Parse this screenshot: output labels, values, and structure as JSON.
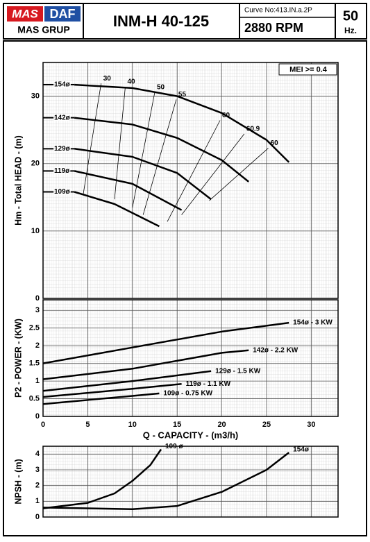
{
  "header": {
    "logo_left": "MAS",
    "logo_right": "DAF",
    "brand": "MAS GRUP",
    "title": "INM-H 40-125",
    "curve_no": "Curve No:413.IN.a.2P",
    "speed": "2880 RPM",
    "frequency": "50",
    "frequency_unit": "Hz."
  },
  "chart_data": [
    {
      "type": "line",
      "ylabel": "Hm - Total HEAD - (m)",
      "annotation": "MEI >= 0.4",
      "xlim": [
        0,
        33
      ],
      "ylim": [
        0,
        35
      ],
      "xticks": [
        0,
        5,
        10,
        15,
        20,
        25,
        30
      ],
      "xtick_labels_shown": false,
      "yticks": [
        0,
        10,
        20,
        30
      ],
      "grid": true,
      "series": [
        {
          "name": "154ø",
          "color": "#000000",
          "x": [
            3.5,
            10,
            15,
            20,
            25,
            27.5
          ],
          "values": [
            31.7,
            31.2,
            30,
            27.5,
            23.5,
            20.2
          ]
        },
        {
          "name": "142ø",
          "color": "#000000",
          "x": [
            3.5,
            10,
            15,
            20,
            23
          ],
          "values": [
            26.8,
            25.8,
            23.8,
            20.5,
            17.3
          ]
        },
        {
          "name": "129ø",
          "color": "#000000",
          "x": [
            3.5,
            10,
            15,
            18.8
          ],
          "values": [
            22.2,
            21,
            18.6,
            14.7
          ]
        },
        {
          "name": "119ø",
          "color": "#000000",
          "x": [
            3.5,
            10,
            15.5
          ],
          "values": [
            18.9,
            17,
            13.1
          ]
        },
        {
          "name": "109ø",
          "color": "#000000",
          "x": [
            3.5,
            8,
            13
          ],
          "values": [
            15.8,
            14,
            10.7
          ]
        }
      ],
      "efficiency_lines": [
        {
          "name": "30",
          "x": [
            6.5,
            4.5
          ],
          "values": [
            31.9,
            15.5
          ]
        },
        {
          "name": "40",
          "x": [
            9.2,
            8
          ],
          "values": [
            31.4,
            14.7
          ]
        },
        {
          "name": "50",
          "x": [
            12.5,
            10
          ],
          "values": [
            30.6,
            13.5
          ]
        },
        {
          "name": "55",
          "x": [
            14.9,
            11.2
          ],
          "values": [
            29.5,
            12.4
          ]
        },
        {
          "name": "60",
          "x": [
            19.8,
            13.9
          ],
          "values": [
            26.4,
            11.4
          ]
        },
        {
          "name": "60.9",
          "x": [
            22.5,
            15.5
          ],
          "values": [
            24.4,
            12.4
          ]
        },
        {
          "name": "60",
          "x": [
            25.2,
            18.6
          ],
          "values": [
            22.3,
            14.5
          ]
        }
      ]
    },
    {
      "type": "line",
      "ylabel": "P2 - POWER - (KW)",
      "xlabel": "Q - CAPACITY - (m3/h)",
      "xlim": [
        0,
        33
      ],
      "ylim": [
        0,
        3.3
      ],
      "xticks": [
        0,
        5,
        10,
        15,
        20,
        25,
        30
      ],
      "xtick_labels_shown": true,
      "yticks": [
        0,
        0.5,
        1,
        1.5,
        2,
        2.5,
        3
      ],
      "grid": true,
      "series": [
        {
          "name": "154ø - 3 KW",
          "color": "#000000",
          "x": [
            0,
            10,
            20,
            27.5
          ],
          "values": [
            1.5,
            1.95,
            2.4,
            2.65
          ]
        },
        {
          "name": "142ø - 2.2 KW",
          "color": "#000000",
          "x": [
            0,
            10,
            20,
            23
          ],
          "values": [
            1.05,
            1.35,
            1.8,
            1.87
          ]
        },
        {
          "name": "129ø - 1.5 KW",
          "color": "#000000",
          "x": [
            0,
            10,
            18.8
          ],
          "values": [
            0.72,
            1.0,
            1.28
          ]
        },
        {
          "name": "119ø - 1.1 KW",
          "color": "#000000",
          "x": [
            0,
            10,
            15.5
          ],
          "values": [
            0.55,
            0.78,
            0.92
          ]
        },
        {
          "name": "109ø - 0.75 KW",
          "color": "#000000",
          "x": [
            0,
            10,
            13
          ],
          "values": [
            0.35,
            0.58,
            0.65
          ]
        }
      ]
    },
    {
      "type": "line",
      "ylabel": "NPSH - (m)",
      "xlim": [
        0,
        33
      ],
      "ylim": [
        0,
        4.5
      ],
      "xticks": [
        0,
        5,
        10,
        15,
        20,
        25,
        30
      ],
      "xtick_labels_shown": false,
      "yticks": [
        0,
        1,
        2,
        3,
        4
      ],
      "grid": true,
      "series": [
        {
          "name": "109 ø",
          "color": "#000000",
          "x": [
            0,
            5,
            8,
            10,
            12,
            13.2
          ],
          "values": [
            0.55,
            0.9,
            1.5,
            2.3,
            3.3,
            4.3
          ]
        },
        {
          "name": "154ø",
          "color": "#000000",
          "x": [
            0,
            5,
            10,
            15,
            20,
            25,
            27.5
          ],
          "values": [
            0.6,
            0.55,
            0.5,
            0.7,
            1.6,
            3.0,
            4.1
          ]
        }
      ]
    }
  ]
}
